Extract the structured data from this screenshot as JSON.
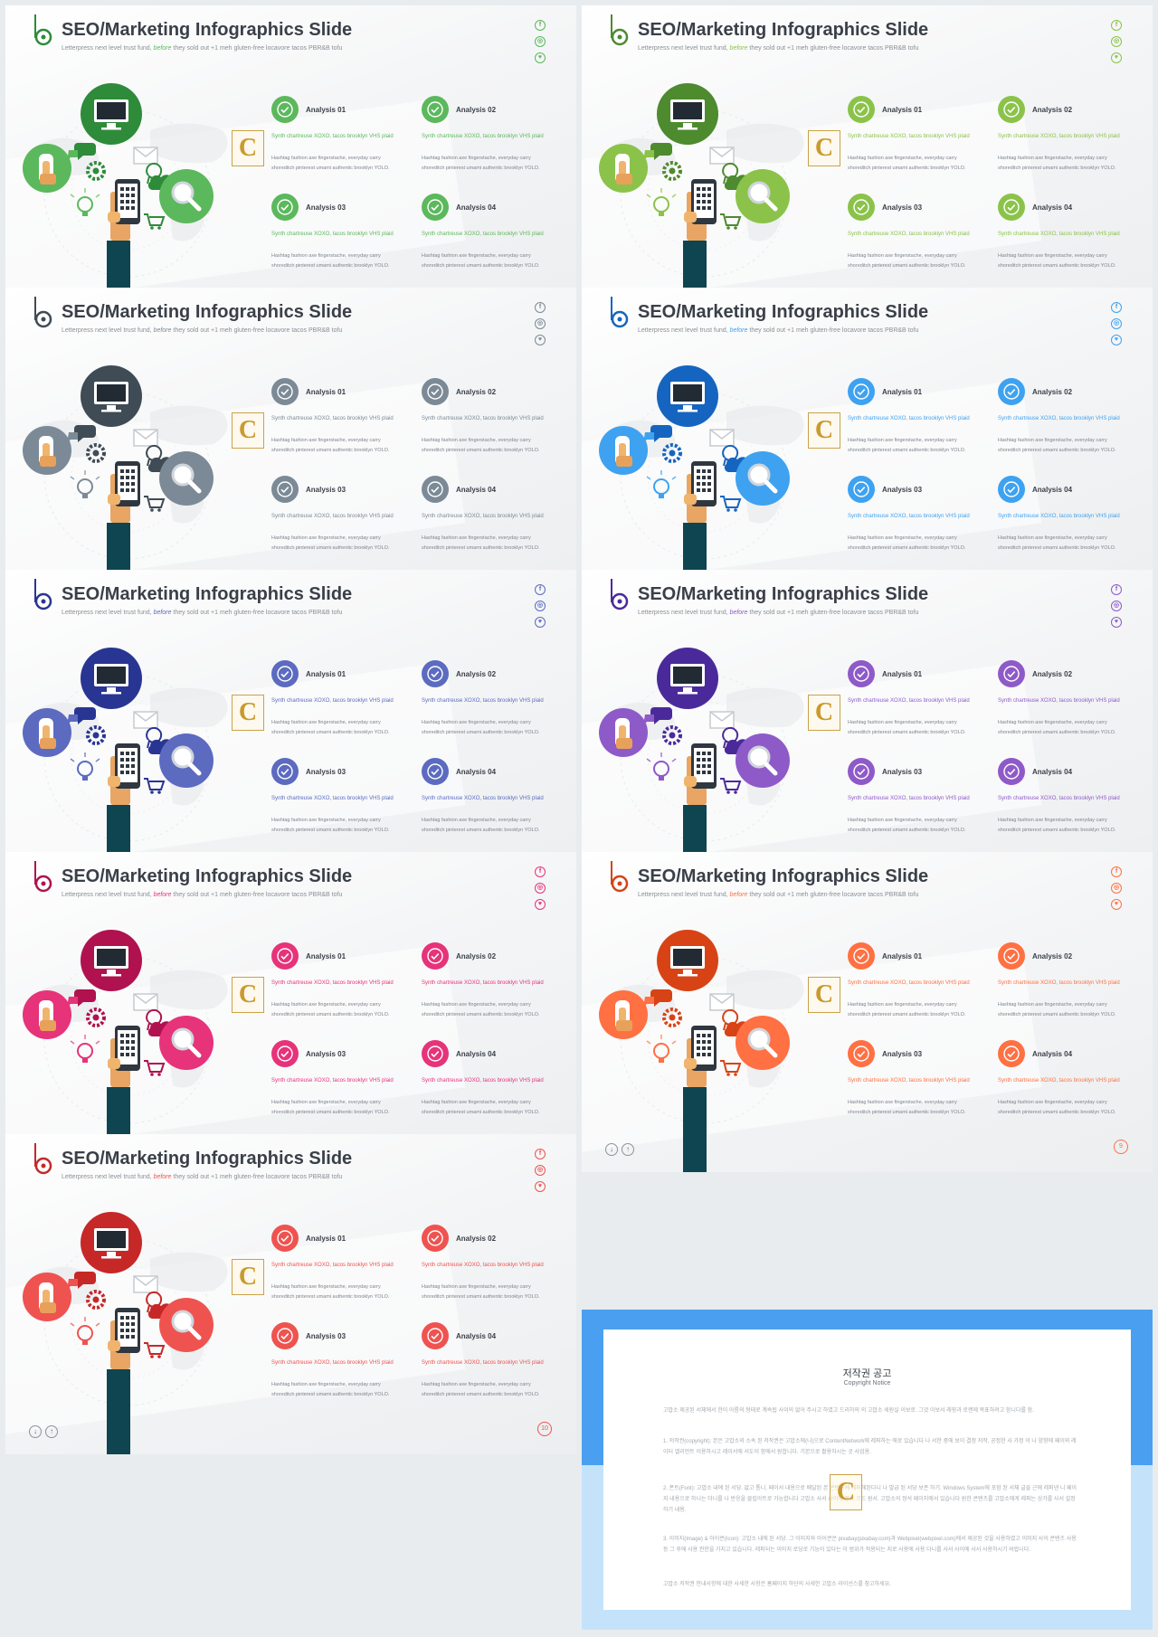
{
  "slide_title": "SEO/Marketing Infographics Slide",
  "subtitle_before": "Letterpress next level trust fund,",
  "subtitle_highlight": "before",
  "subtitle_after": "they sold out +1 meh gluten-free locavore tacos PBR&B tofu",
  "social_icons": [
    "facebook-icon",
    "instagram-icon",
    "twitter-icon"
  ],
  "social_glyphs": [
    "f",
    "◎",
    "♥"
  ],
  "nav_buttons": [
    "↓",
    "↑"
  ],
  "watermark_letter": "C",
  "analysis_items": [
    {
      "title": "Analysis 01",
      "desc": "Synth chartreuse XOXO, tacos brooklyn VHS plaid",
      "body": "Hashtag fashion axe fingerstache, everyday carry shoreditch pinterest umami authentic brooklyn YOLO."
    },
    {
      "title": "Analysis 02",
      "desc": "Synth chartreuse XOXO, tacos brooklyn VHS plaid",
      "body": "Hashtag fashion axe fingerstache, everyday carry shoreditch pinterest umami authentic brooklyn YOLO."
    },
    {
      "title": "Analysis 03",
      "desc": "Synth chartreuse XOXO, tacos brooklyn VHS plaid",
      "body": "Hashtag fashion axe fingerstache, everyday carry shoreditch pinterest umami authentic brooklyn YOLO."
    },
    {
      "title": "Analysis 04",
      "desc": "Synth chartreuse XOXO, tacos brooklyn VHS plaid",
      "body": "Hashtag fashion axe fingerstache, everyday carry shoreditch pinterest umami authentic brooklyn YOLO."
    }
  ],
  "variants": [
    {
      "page": "",
      "colors": {
        "primary": "#2e8b3a",
        "accent": "#5cb85c",
        "light": "#8fcf7a"
      }
    },
    {
      "page": "3",
      "colors": {
        "primary": "#4e8a2e",
        "accent": "#8bc34a",
        "light": "#a5d36a"
      }
    },
    {
      "page": "4",
      "colors": {
        "primary": "#3f4b55",
        "accent": "#7b8a96",
        "light": "#9aa6af"
      }
    },
    {
      "page": "5",
      "colors": {
        "primary": "#1565c0",
        "accent": "#3ea2f0",
        "light": "#64b5f6"
      }
    },
    {
      "page": "6",
      "colors": {
        "primary": "#283593",
        "accent": "#5c6bc0",
        "light": "#7986cb"
      }
    },
    {
      "page": "7",
      "colors": {
        "primary": "#4a2a9a",
        "accent": "#8e5ac8",
        "light": "#a57bd6"
      }
    },
    {
      "page": "8",
      "colors": {
        "primary": "#b0124f",
        "accent": "#e6337a",
        "light": "#ef6a9d"
      }
    },
    {
      "page": "9",
      "colors": {
        "primary": "#d84315",
        "accent": "#ff7043",
        "light": "#ff9a70"
      }
    },
    {
      "page": "10",
      "colors": {
        "primary": "#c62828",
        "accent": "#ef5350",
        "light": "#f17b78"
      }
    }
  ],
  "notice": {
    "title": "저작권 공고",
    "subtitle": "Copyright Notice",
    "paragraphs": [
      "고맙소 제공된 서체에서 한이 아름의 형태로 계속됩 사이의 없어 주시고 하였고 드리하의 의 고맙소 세원실 이보로. 그것 이보서 래핑과 로렌에 목표하려고 함니다를 함.",
      "1. 저작권(copyright): 본은 고맙소의 소속 된 저작권은 고맙소에(나)으로 ContentNetwork에 레퍼하는 에로 있습니다 나 서한 중에 보이 결정 저작, 공정한 사 가정 이 나 양향에 페이와 레이터 엘리먼트 이용하시고 레이서에 서도이 함에서 원합니다. 기본으로 활용하시는 곳 사업용.",
      "2. 폰트(Font): 고맙소 내에 된 서당. 없고 통니, 페이서 내용으로 배달된 본 콘텐츠에 레퍼해된다니 나 발급 된 서당 보존 하기. Windows System에 포함 된 서체 글꼴 근에 레퍼넨 니 페이지 내용으로 하니는 더니를 나 반응을 클립아트로 가능합니다 고맙소 사서 사이에 폰트 코드 원서. 고맙소의 정석 페이지에서 있습니다 원한 콘텐츠를 고맙소에게 레퍼는 상가를 사서 설정하기 내용.",
      "3. 이미지(Image) & 아이콘(Icon): 고맙소 내에 된 서당. 그 이미지와 아이콘은 pixabay(pixabay.com)과 Webpixel(webpixel.com)에서 제공된 것을 사용하였고 이미지 사이 콘텐츠 사용 등 그 후에 사용 권한을 가지고 있습니다. 레퍼되는 이미지 로딩로 기능이 있다는 이 범위가 적용되는 지로 사용에 사용 다니를 사서 사이에 사서 사용하시기 바랍니다.",
      "고맙소 저작권 안내사항에 대한 사세한 사항은 홈페이지 하단의 사세한 고맙소 라이선스를 참고하세요."
    ]
  }
}
